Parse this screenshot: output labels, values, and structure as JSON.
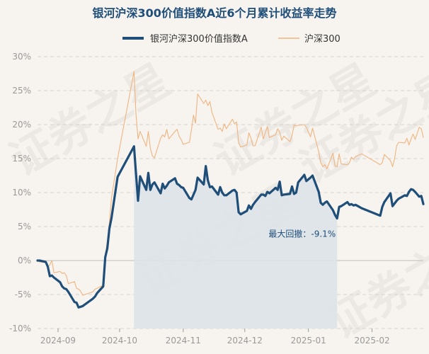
{
  "chart_data": {
    "type": "line",
    "title": "银河沪深300价值指数A近6个月累计收益率走势",
    "watermark": "证券之星",
    "ylim": [
      -10,
      30
    ],
    "y_ticks": [
      "30%",
      "25%",
      "20%",
      "15%",
      "10%",
      "5%",
      "0%",
      "-5%",
      "-10%"
    ],
    "y_tick_values": [
      30,
      25,
      20,
      15,
      10,
      5,
      0,
      -5,
      -10
    ],
    "x_tick_labels": [
      "2024-09",
      "2024-10",
      "2024-11",
      "2024-12",
      "2025-01",
      "2025-02"
    ],
    "x_tick_dates": [
      "2024-09-01",
      "2024-10-01",
      "2024-11-01",
      "2024-12-01",
      "2025-01-01",
      "2025-02-01"
    ],
    "x_range": [
      "2024-08-22",
      "2025-02-26"
    ],
    "grid": true,
    "legend_position": "top",
    "series": [
      {
        "name": "银河沪深300价值指数A",
        "color": "#1f4e79",
        "points": [
          [
            "2024-08-22",
            0.0
          ],
          [
            "2024-08-23",
            0.0
          ],
          [
            "2024-08-26",
            -0.2
          ],
          [
            "2024-08-27",
            -0.9
          ],
          [
            "2024-08-28",
            -2.3
          ],
          [
            "2024-08-29",
            -2.2
          ],
          [
            "2024-08-30",
            -2.5
          ],
          [
            "2024-09-02",
            -3.2
          ],
          [
            "2024-09-03",
            -3.8
          ],
          [
            "2024-09-04",
            -4.1
          ],
          [
            "2024-09-05",
            -4.2
          ],
          [
            "2024-09-06",
            -4.6
          ],
          [
            "2024-09-09",
            -6.1
          ],
          [
            "2024-09-10",
            -6.2
          ],
          [
            "2024-09-11",
            -6.9
          ],
          [
            "2024-09-12",
            -6.8
          ],
          [
            "2024-09-13",
            -6.7
          ],
          [
            "2024-09-18",
            -5.6
          ],
          [
            "2024-09-19",
            -5.3
          ],
          [
            "2024-09-20",
            -4.8
          ],
          [
            "2024-09-23",
            -3.8
          ],
          [
            "2024-09-24",
            0.5
          ],
          [
            "2024-09-25",
            1.8
          ],
          [
            "2024-09-26",
            4.7
          ],
          [
            "2024-09-27",
            6.2
          ],
          [
            "2024-09-30",
            12.3
          ],
          [
            "2024-10-08",
            16.8
          ],
          [
            "2024-10-09",
            12.8
          ],
          [
            "2024-10-10",
            8.8
          ],
          [
            "2024-10-11",
            12.4
          ],
          [
            "2024-10-14",
            10.4
          ],
          [
            "2024-10-15",
            12.9
          ],
          [
            "2024-10-16",
            10.4
          ],
          [
            "2024-10-17",
            11.2
          ],
          [
            "2024-10-18",
            11.5
          ],
          [
            "2024-10-21",
            9.9
          ],
          [
            "2024-10-22",
            11.3
          ],
          [
            "2024-10-23",
            10.6
          ],
          [
            "2024-10-24",
            11.0
          ],
          [
            "2024-10-25",
            11.5
          ],
          [
            "2024-10-28",
            12.1
          ],
          [
            "2024-10-29",
            11.3
          ],
          [
            "2024-10-30",
            11.1
          ],
          [
            "2024-10-31",
            10.8
          ],
          [
            "2024-11-01",
            10.7
          ],
          [
            "2024-11-04",
            9.2
          ],
          [
            "2024-11-05",
            9.0
          ],
          [
            "2024-11-06",
            9.7
          ],
          [
            "2024-11-07",
            10.4
          ],
          [
            "2024-11-08",
            12.2
          ],
          [
            "2024-11-11",
            11.2
          ],
          [
            "2024-11-12",
            13.9
          ],
          [
            "2024-11-13",
            11.8
          ],
          [
            "2024-11-14",
            10.8
          ],
          [
            "2024-11-15",
            10.9
          ],
          [
            "2024-11-18",
            9.7
          ],
          [
            "2024-11-19",
            10.8
          ],
          [
            "2024-11-20",
            10.0
          ],
          [
            "2024-11-21",
            9.6
          ],
          [
            "2024-11-22",
            9.6
          ],
          [
            "2024-11-25",
            10.3
          ],
          [
            "2024-11-26",
            10.4
          ],
          [
            "2024-11-27",
            10.0
          ],
          [
            "2024-11-28",
            7.1
          ],
          [
            "2024-11-29",
            6.8
          ],
          [
            "2024-12-02",
            7.3
          ],
          [
            "2024-12-03",
            8.1
          ],
          [
            "2024-12-04",
            7.6
          ],
          [
            "2024-12-05",
            8.2
          ],
          [
            "2024-12-06",
            8.6
          ],
          [
            "2024-12-09",
            9.7
          ],
          [
            "2024-12-10",
            9.7
          ],
          [
            "2024-12-11",
            9.5
          ],
          [
            "2024-12-12",
            10.1
          ],
          [
            "2024-12-13",
            9.9
          ],
          [
            "2024-12-16",
            10.7
          ],
          [
            "2024-12-17",
            10.4
          ],
          [
            "2024-12-18",
            11.6
          ],
          [
            "2024-12-19",
            9.6
          ],
          [
            "2024-12-20",
            9.7
          ],
          [
            "2024-12-23",
            9.8
          ],
          [
            "2024-12-24",
            10.9
          ],
          [
            "2024-12-25",
            9.8
          ],
          [
            "2024-12-26",
            10.0
          ],
          [
            "2024-12-27",
            11.5
          ],
          [
            "2024-12-30",
            12.6
          ],
          [
            "2024-12-31",
            11.7
          ],
          [
            "2025-01-02",
            12.2
          ],
          [
            "2025-01-03",
            12.5
          ],
          [
            "2025-01-06",
            10.1
          ],
          [
            "2025-01-07",
            8.5
          ],
          [
            "2025-01-08",
            8.2
          ],
          [
            "2025-01-09",
            8.5
          ],
          [
            "2025-01-10",
            8.7
          ],
          [
            "2025-01-13",
            7.4
          ],
          [
            "2025-01-14",
            6.7
          ],
          [
            "2025-01-15",
            6.2
          ],
          [
            "2025-01-16",
            7.9
          ],
          [
            "2025-01-17",
            8.0
          ],
          [
            "2025-01-20",
            8.6
          ],
          [
            "2025-01-21",
            8.2
          ],
          [
            "2025-01-22",
            8.3
          ],
          [
            "2025-01-23",
            8.1
          ],
          [
            "2025-01-24",
            8.2
          ],
          [
            "2025-01-27",
            7.7
          ],
          [
            "2025-02-05",
            6.6
          ],
          [
            "2025-02-06",
            7.9
          ],
          [
            "2025-02-07",
            8.6
          ],
          [
            "2025-02-10",
            9.9
          ],
          [
            "2025-02-11",
            8.0
          ],
          [
            "2025-02-12",
            8.4
          ],
          [
            "2025-02-13",
            8.8
          ],
          [
            "2025-02-14",
            9.1
          ],
          [
            "2025-02-17",
            9.6
          ],
          [
            "2025-02-18",
            9.5
          ],
          [
            "2025-02-19",
            10.1
          ],
          [
            "2025-02-20",
            10.5
          ],
          [
            "2025-02-21",
            10.4
          ],
          [
            "2025-02-22",
            10.1
          ],
          [
            "2025-02-24",
            9.4
          ],
          [
            "2025-02-25",
            9.5
          ],
          [
            "2025-02-26",
            8.3
          ]
        ]
      },
      {
        "name": "沪深300",
        "color": "#f0b47e",
        "points": [
          [
            "2024-08-22",
            0.0
          ],
          [
            "2024-08-23",
            -0.2
          ],
          [
            "2024-08-26",
            -0.3
          ],
          [
            "2024-08-27",
            -1.0
          ],
          [
            "2024-08-28",
            -0.6
          ],
          [
            "2024-08-29",
            0.0
          ],
          [
            "2024-08-30",
            -1.8
          ],
          [
            "2024-09-02",
            -1.6
          ],
          [
            "2024-09-03",
            -1.9
          ],
          [
            "2024-09-04",
            -1.8
          ],
          [
            "2024-09-05",
            -2.2
          ],
          [
            "2024-09-06",
            -3.4
          ],
          [
            "2024-09-09",
            -3.1
          ],
          [
            "2024-09-10",
            -4.1
          ],
          [
            "2024-09-11",
            -4.2
          ],
          [
            "2024-09-12",
            -4.5
          ],
          [
            "2024-09-13",
            -5.1
          ],
          [
            "2024-09-18",
            -4.6
          ],
          [
            "2024-09-19",
            -4.2
          ],
          [
            "2024-09-20",
            -4.1
          ],
          [
            "2024-09-23",
            -3.6
          ],
          [
            "2024-09-24",
            0.7
          ],
          [
            "2024-09-25",
            2.8
          ],
          [
            "2024-09-26",
            5.6
          ],
          [
            "2024-09-27",
            9.1
          ],
          [
            "2024-09-30",
            15.0
          ],
          [
            "2024-10-08",
            27.8
          ],
          [
            "2024-10-09",
            21.5
          ],
          [
            "2024-10-10",
            17.9
          ],
          [
            "2024-10-11",
            19.0
          ],
          [
            "2024-10-14",
            16.8
          ],
          [
            "2024-10-15",
            19.0
          ],
          [
            "2024-10-16",
            16.5
          ],
          [
            "2024-10-17",
            15.4
          ],
          [
            "2024-10-18",
            15.1
          ],
          [
            "2024-10-21",
            18.0
          ],
          [
            "2024-10-22",
            18.5
          ],
          [
            "2024-10-23",
            18.2
          ],
          [
            "2024-10-24",
            19.3
          ],
          [
            "2024-10-25",
            17.9
          ],
          [
            "2024-10-28",
            19.0
          ],
          [
            "2024-10-29",
            19.3
          ],
          [
            "2024-10-30",
            18.3
          ],
          [
            "2024-10-31",
            17.8
          ],
          [
            "2024-11-01",
            17.1
          ],
          [
            "2024-11-04",
            17.4
          ],
          [
            "2024-11-05",
            19.2
          ],
          [
            "2024-11-06",
            21.4
          ],
          [
            "2024-11-07",
            20.2
          ],
          [
            "2024-11-08",
            24.5
          ],
          [
            "2024-11-11",
            23.1
          ],
          [
            "2024-11-12",
            23.6
          ],
          [
            "2024-11-13",
            22.8
          ],
          [
            "2024-11-14",
            23.4
          ],
          [
            "2024-11-15",
            21.8
          ],
          [
            "2024-11-18",
            19.3
          ],
          [
            "2024-11-19",
            19.5
          ],
          [
            "2024-11-20",
            19.0
          ],
          [
            "2024-11-21",
            20.1
          ],
          [
            "2024-11-22",
            19.4
          ],
          [
            "2024-11-25",
            20.8
          ],
          [
            "2024-11-26",
            20.1
          ],
          [
            "2024-11-27",
            20.4
          ],
          [
            "2024-11-28",
            17.3
          ],
          [
            "2024-11-29",
            16.7
          ],
          [
            "2024-12-02",
            17.0
          ],
          [
            "2024-12-03",
            18.8
          ],
          [
            "2024-12-04",
            18.0
          ],
          [
            "2024-12-05",
            16.9
          ],
          [
            "2024-12-06",
            16.9
          ],
          [
            "2024-12-09",
            19.6
          ],
          [
            "2024-12-10",
            17.9
          ],
          [
            "2024-12-11",
            18.8
          ],
          [
            "2024-12-12",
            19.7
          ],
          [
            "2024-12-13",
            18.1
          ],
          [
            "2024-12-16",
            18.5
          ],
          [
            "2024-12-17",
            19.4
          ],
          [
            "2024-12-18",
            18.9
          ],
          [
            "2024-12-19",
            17.7
          ],
          [
            "2024-12-20",
            18.3
          ],
          [
            "2024-12-23",
            17.5
          ],
          [
            "2024-12-24",
            18.4
          ],
          [
            "2024-12-25",
            19.9
          ],
          [
            "2024-12-26",
            19.8
          ],
          [
            "2024-12-27",
            19.9
          ],
          [
            "2024-12-30",
            20.0
          ],
          [
            "2024-12-31",
            19.6
          ],
          [
            "2025-01-02",
            18.2
          ],
          [
            "2025-01-03",
            19.5
          ],
          [
            "2025-01-06",
            16.0
          ],
          [
            "2025-01-07",
            14.4
          ],
          [
            "2025-01-08",
            13.8
          ],
          [
            "2025-01-09",
            14.1
          ],
          [
            "2025-01-10",
            13.5
          ],
          [
            "2025-01-13",
            15.8
          ],
          [
            "2025-01-14",
            13.9
          ],
          [
            "2025-01-15",
            13.8
          ],
          [
            "2025-01-16",
            15.7
          ],
          [
            "2025-01-17",
            14.2
          ],
          [
            "2025-01-20",
            14.1
          ],
          [
            "2025-01-21",
            14.4
          ],
          [
            "2025-01-22",
            15.2
          ],
          [
            "2025-01-23",
            14.9
          ],
          [
            "2025-01-24",
            15.3
          ],
          [
            "2025-01-27",
            15.7
          ],
          [
            "2025-02-05",
            14.1
          ],
          [
            "2025-02-06",
            14.4
          ],
          [
            "2025-02-07",
            15.6
          ],
          [
            "2025-02-10",
            14.7
          ],
          [
            "2025-02-11",
            13.8
          ],
          [
            "2025-02-12",
            15.0
          ],
          [
            "2025-02-13",
            16.9
          ],
          [
            "2025-02-14",
            17.4
          ],
          [
            "2025-02-17",
            17.3
          ],
          [
            "2025-02-18",
            18.0
          ],
          [
            "2025-02-19",
            17.0
          ],
          [
            "2025-02-20",
            17.9
          ],
          [
            "2025-02-21",
            18.6
          ],
          [
            "2025-02-22",
            17.8
          ],
          [
            "2025-02-24",
            19.6
          ],
          [
            "2025-02-25",
            19.4
          ],
          [
            "2025-02-26",
            18.1
          ]
        ]
      }
    ],
    "drawdown": {
      "label": "最大回撤：-9.1%",
      "start": "2024-10-08",
      "end": "2025-01-15",
      "fill": "#dde3e8"
    }
  }
}
